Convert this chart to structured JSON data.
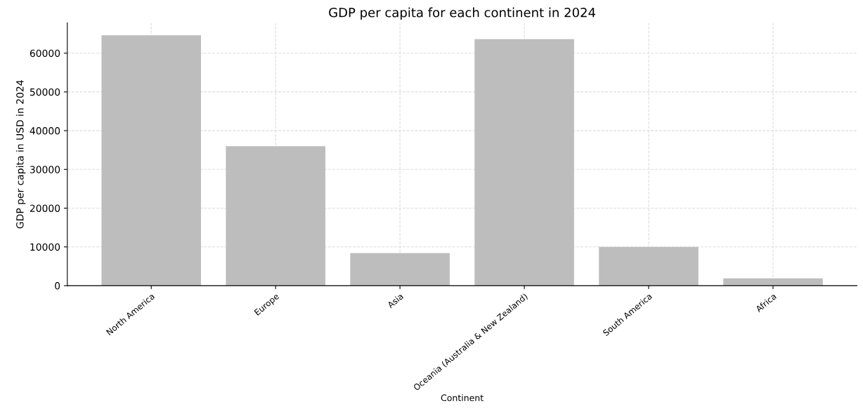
{
  "chart_data": {
    "type": "bar",
    "title": "GDP per capita for each continent in 2024",
    "xlabel": "Continent",
    "ylabel": "GDP per capita in USD in 2024",
    "categories": [
      "North America",
      "Europe",
      "Asia",
      "Oceania (Australia & New Zealand)",
      "South America",
      "Africa"
    ],
    "values": [
      64600,
      36000,
      8400,
      63600,
      10000,
      1900
    ],
    "color": "#bdbdbd",
    "ylim": [
      0,
      67800
    ],
    "yticks": [
      0,
      10000,
      20000,
      30000,
      40000,
      50000,
      60000
    ],
    "grid": true
  }
}
